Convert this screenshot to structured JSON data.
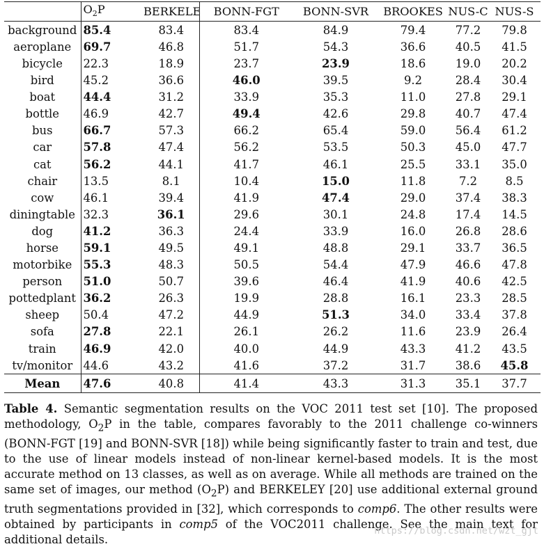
{
  "table": {
    "columns": [
      "O2P",
      "BERKELEY",
      "BONN-FGT",
      "BONN-SVR",
      "BROOKES",
      "NUS-C",
      "NUS-S"
    ],
    "rows": [
      {
        "label": "background",
        "values": [
          "85.4",
          "83.4",
          "83.4",
          "84.9",
          "79.4",
          "77.2",
          "79.8"
        ],
        "bold": 0
      },
      {
        "label": "aeroplane",
        "values": [
          "69.7",
          "46.8",
          "51.7",
          "54.3",
          "36.6",
          "40.5",
          "41.5"
        ],
        "bold": 0
      },
      {
        "label": "bicycle",
        "values": [
          "22.3",
          "18.9",
          "23.7",
          "23.9",
          "18.6",
          "19.0",
          "20.2"
        ],
        "bold": 3
      },
      {
        "label": "bird",
        "values": [
          "45.2",
          "36.6",
          "46.0",
          "39.5",
          "9.2",
          "28.4",
          "30.4"
        ],
        "bold": 2
      },
      {
        "label": "boat",
        "values": [
          "44.4",
          "31.2",
          "33.9",
          "35.3",
          "11.0",
          "27.8",
          "29.1"
        ],
        "bold": 0
      },
      {
        "label": "bottle",
        "values": [
          "46.9",
          "42.7",
          "49.4",
          "42.6",
          "29.8",
          "40.7",
          "47.4"
        ],
        "bold": 2
      },
      {
        "label": "bus",
        "values": [
          "66.7",
          "57.3",
          "66.2",
          "65.4",
          "59.0",
          "56.4",
          "61.2"
        ],
        "bold": 0
      },
      {
        "label": "car",
        "values": [
          "57.8",
          "47.4",
          "56.2",
          "53.5",
          "50.3",
          "45.0",
          "47.7"
        ],
        "bold": 0
      },
      {
        "label": "cat",
        "values": [
          "56.2",
          "44.1",
          "41.7",
          "46.1",
          "25.5",
          "33.1",
          "35.0"
        ],
        "bold": 0
      },
      {
        "label": "chair",
        "values": [
          "13.5",
          "8.1",
          "10.4",
          "15.0",
          "11.8",
          "7.2",
          "8.5"
        ],
        "bold": 3
      },
      {
        "label": "cow",
        "values": [
          "46.1",
          "39.4",
          "41.9",
          "47.4",
          "29.0",
          "37.4",
          "38.3"
        ],
        "bold": 3
      },
      {
        "label": "diningtable",
        "values": [
          "32.3",
          "36.1",
          "29.6",
          "30.1",
          "24.8",
          "17.4",
          "14.5"
        ],
        "bold": 1
      },
      {
        "label": "dog",
        "values": [
          "41.2",
          "36.3",
          "24.4",
          "33.9",
          "16.0",
          "26.8",
          "28.6"
        ],
        "bold": 0
      },
      {
        "label": "horse",
        "values": [
          "59.1",
          "49.5",
          "49.1",
          "48.8",
          "29.1",
          "33.7",
          "36.5"
        ],
        "bold": 0
      },
      {
        "label": "motorbike",
        "values": [
          "55.3",
          "48.3",
          "50.5",
          "54.4",
          "47.9",
          "46.6",
          "47.8"
        ],
        "bold": 0
      },
      {
        "label": "person",
        "values": [
          "51.0",
          "50.7",
          "39.6",
          "46.4",
          "41.9",
          "40.6",
          "42.5"
        ],
        "bold": 0
      },
      {
        "label": "pottedplant",
        "values": [
          "36.2",
          "26.3",
          "19.9",
          "28.8",
          "16.1",
          "23.3",
          "28.5"
        ],
        "bold": 0
      },
      {
        "label": "sheep",
        "values": [
          "50.4",
          "47.2",
          "44.9",
          "51.3",
          "34.0",
          "33.4",
          "37.8"
        ],
        "bold": 3
      },
      {
        "label": "sofa",
        "values": [
          "27.8",
          "22.1",
          "26.1",
          "26.2",
          "11.6",
          "23.9",
          "26.4"
        ],
        "bold": 0
      },
      {
        "label": "train",
        "values": [
          "46.9",
          "42.0",
          "40.0",
          "44.9",
          "43.3",
          "41.2",
          "43.5"
        ],
        "bold": 0
      },
      {
        "label": "tv/monitor",
        "values": [
          "44.6",
          "43.2",
          "41.6",
          "37.2",
          "31.7",
          "38.6",
          "45.8"
        ],
        "bold": 6
      }
    ],
    "mean": {
      "label": "Mean",
      "values": [
        "47.6",
        "40.8",
        "41.4",
        "43.3",
        "31.3",
        "35.1",
        "37.7"
      ],
      "bold": 0
    }
  },
  "caption": {
    "label": "Table 4.",
    "part1": "Semantic segmentation results on the VOC 2011 test set [10]. The proposed methodology, O",
    "sub1": "2",
    "part2": "P in the table, compares favorably to the 2011 challenge co-winners (BONN-FGT [19] and BONN-SVR [18]) while being significantly faster to train and test, due to the use of linear models instead of non-linear kernel-based models. It is the most accurate method on 13 classes, as well as on average. While all methods are trained on the same set of images, our method (O",
    "sub2": "2",
    "part3": "P) and BERKELEY [20] use additional external ground truth segmentations provided in [32], which corresponds to ",
    "italic1": "comp6",
    "part4": ". The other results were obtained by participants in ",
    "italic2": "comp5",
    "part5": " of the VOC2011 challenge. See the main text for additional details."
  },
  "watermark": "https://blog.csdn.net/wzt_gjt"
}
